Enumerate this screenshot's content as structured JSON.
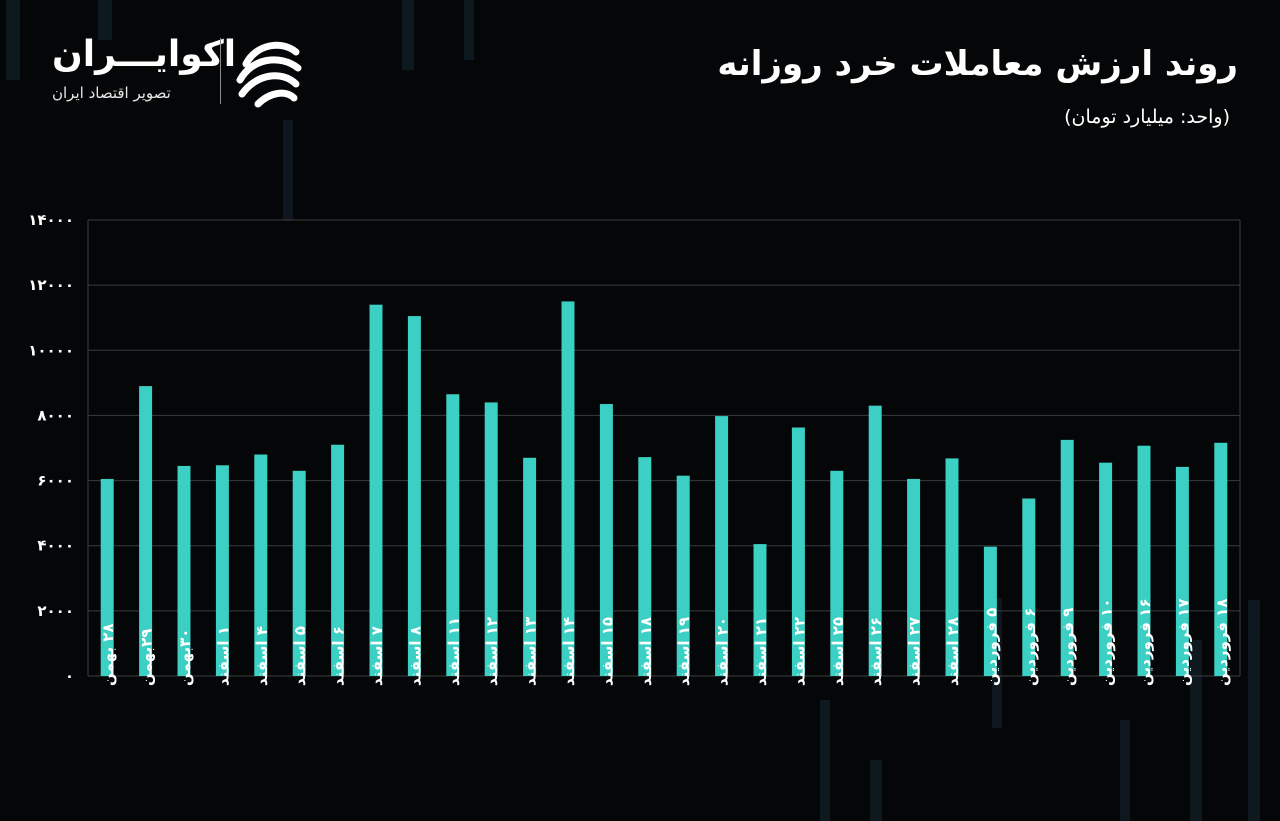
{
  "header": {
    "title": "روند ارزش معاملات خرد روزانه",
    "unit": "(واحد: میلیارد تومان)"
  },
  "logo": {
    "name": "اکوایـــران",
    "tagline": "تصویر اقتصاد ایران",
    "icon": "ecoiran-swirl-icon"
  },
  "colors": {
    "bar": "#3ccfc4",
    "grid": "#3a3d40",
    "background": "#050607",
    "text": "#ffffff"
  },
  "chart_data": {
    "type": "bar",
    "title": "روند ارزش معاملات خرد روزانه",
    "ylabel": "",
    "xlabel": "",
    "ylim": [
      0,
      14000
    ],
    "grid": true,
    "y_ticks": [
      "۰",
      "۲۰۰۰",
      "۴۰۰۰",
      "۶۰۰۰",
      "۸۰۰۰",
      "۱۰۰۰۰",
      "۱۲۰۰۰",
      "۱۴۰۰۰"
    ],
    "categories": [
      "۲۸ بهمن",
      "۲۹بهمن",
      "۳۰بهمن",
      "۱ اسفند",
      "۴ اسفند",
      "۵ اسفند",
      "۶ اسفند",
      "۷ اسفند",
      "۸ اسفند",
      "۱۱ اسفند",
      "۱۲ اسفند",
      "۱۳ اسفند",
      "۱۴ اسفند",
      "۱۵ اسفند",
      "۱۸ اسفند",
      "۱۹ اسفند",
      "۲۰ اسفند",
      "۲۱ اسفند",
      "۲۲ اسفند",
      "۲۵ اسفند",
      "۲۶ اسفند",
      "۲۷ اسفند",
      "۲۸ اسفند",
      "۵ فروردین",
      "۶ فروردین",
      "۹ فروردین",
      "۱۰ فروردین",
      "۱۶ فروردین",
      "۱۷ فروردین",
      "۱۸ فروردین"
    ],
    "values": [
      6050,
      8900,
      6450,
      6470,
      6800,
      6300,
      7100,
      11400,
      11050,
      8650,
      8400,
      6700,
      11500,
      8350,
      6720,
      6150,
      7980,
      4050,
      7630,
      6300,
      8300,
      6050,
      6680,
      3970,
      5450,
      7250,
      6550,
      7070,
      6420,
      7160
    ]
  }
}
